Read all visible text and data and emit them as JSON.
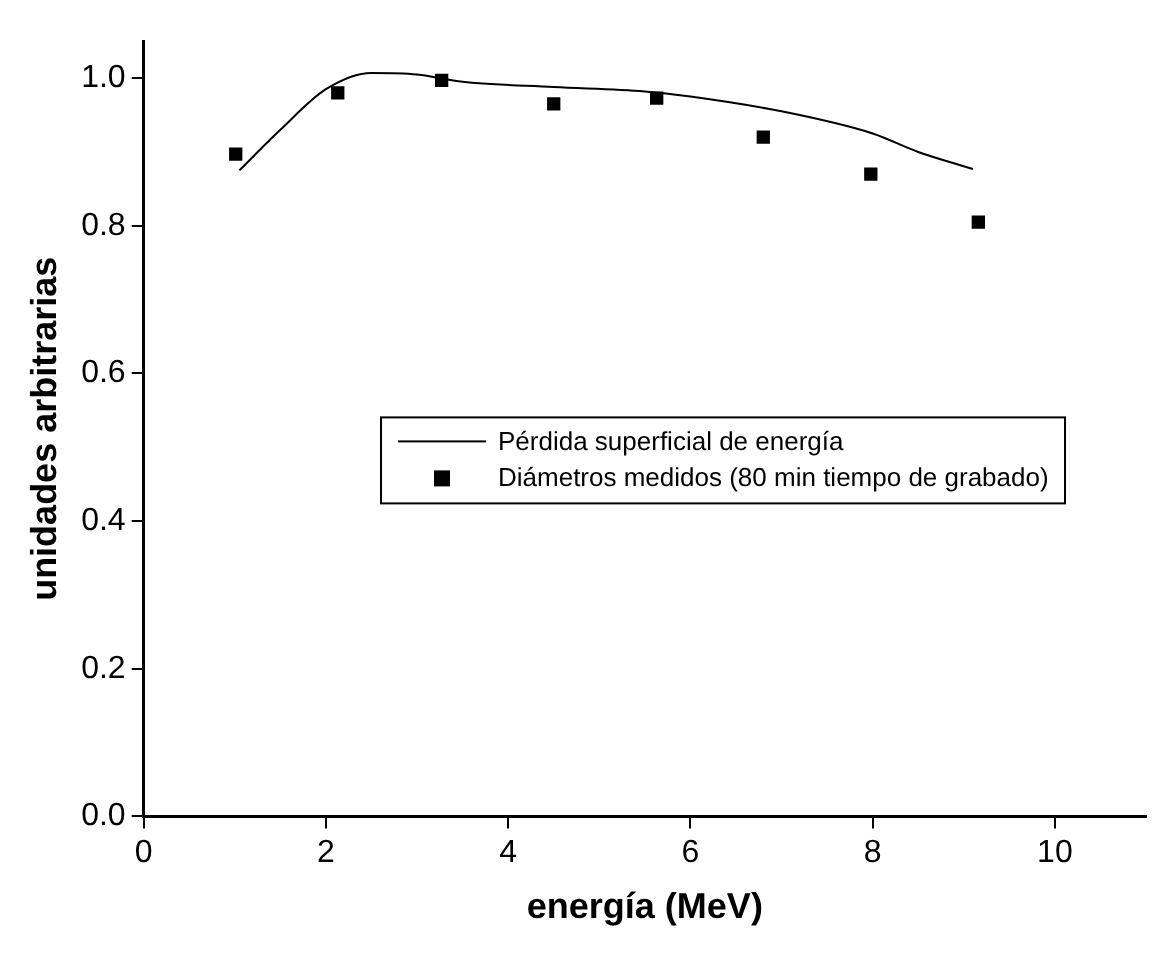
{
  "chart_data": {
    "type": "scatter",
    "xlabel": "energía (MeV)",
    "ylabel": "unidades arbitrarias",
    "xlim": [
      0,
      11
    ],
    "xticks": [
      0,
      2,
      4,
      6,
      8,
      10
    ],
    "ylim": [
      0,
      1.05
    ],
    "yticks": [
      {
        "value": 0,
        "label": "0.0"
      },
      {
        "value": 0.2,
        "label": "0.2"
      },
      {
        "value": 0.4,
        "label": "0.4"
      },
      {
        "value": 0.6,
        "label": "0.6"
      },
      {
        "value": 0.8,
        "label": "0.8"
      },
      {
        "value": 1,
        "label": "1.0"
      }
    ],
    "grid": false,
    "legend": "center",
    "series": [
      {
        "name": "Pérdida superficial de energía",
        "type": "line",
        "color": "#000000",
        "marker": "none",
        "line_style": "solid",
        "x": [
          1.05,
          1.5,
          2.0,
          2.5,
          3.0,
          3.5,
          4.5,
          5.5,
          6.0,
          7.0,
          8.0,
          8.5,
          9.1
        ],
        "values": [
          0.875,
          0.93,
          0.985,
          1.007,
          1.005,
          0.995,
          0.988,
          0.982,
          0.975,
          0.955,
          0.925,
          0.9,
          0.877
        ]
      },
      {
        "name": "Diámetros medidos (80 min tiempo de grabado)",
        "type": "scatter",
        "color": "#000000",
        "marker": "square",
        "x": [
          1.01,
          2.13,
          3.27,
          4.5,
          5.63,
          6.8,
          7.98,
          9.16
        ],
        "values": [
          0.897,
          0.98,
          0.997,
          0.965,
          0.973,
          0.92,
          0.87,
          0.805
        ]
      }
    ]
  }
}
